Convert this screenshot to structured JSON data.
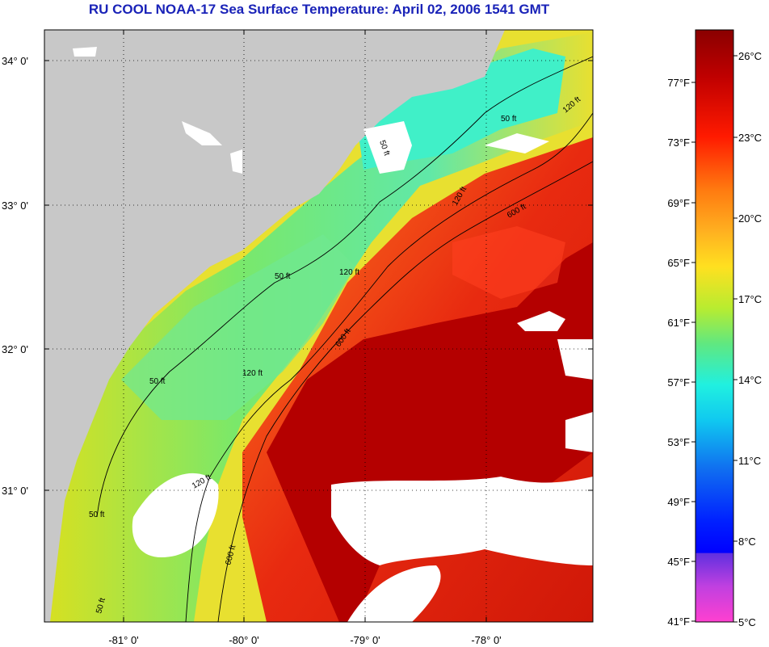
{
  "title": "RU COOL  NOAA-17  Sea Surface Temperature:  April 02, 2006 1541 GMT",
  "map": {
    "lat_labels": [
      "34° 0'",
      "33° 0'",
      "32° 0'",
      "31° 0'"
    ],
    "lon_labels": [
      "-81° 0'",
      "-80° 0'",
      "-79° 0'",
      "-78° 0'"
    ],
    "contour_labels": [
      "50 ft",
      "120 ft",
      "600 ft",
      "50 ft",
      "120 ft",
      "600 ft",
      "50 ft",
      "120 ft",
      "50 ft",
      "120 ft",
      "600 ft",
      "50 ft",
      "120 ft",
      "50 ft"
    ]
  },
  "colorbar": {
    "celsius": [
      "26°C",
      "23°C",
      "20°C",
      "17°C",
      "14°C",
      "11°C",
      "8°C",
      "5°C"
    ],
    "fahrenheit": [
      "77°F",
      "73°F",
      "69°F",
      "65°F",
      "61°F",
      "57°F",
      "53°F",
      "49°F",
      "45°F",
      "41°F"
    ]
  },
  "colors": {
    "land": "#c8c8c8",
    "cloud": "#ffffff",
    "cold_water": "#3fe0d0",
    "mid_water": "#e8e030",
    "warm_water": "#e83010",
    "gulf_stream": "#b00000",
    "title": "#1a23b8"
  }
}
